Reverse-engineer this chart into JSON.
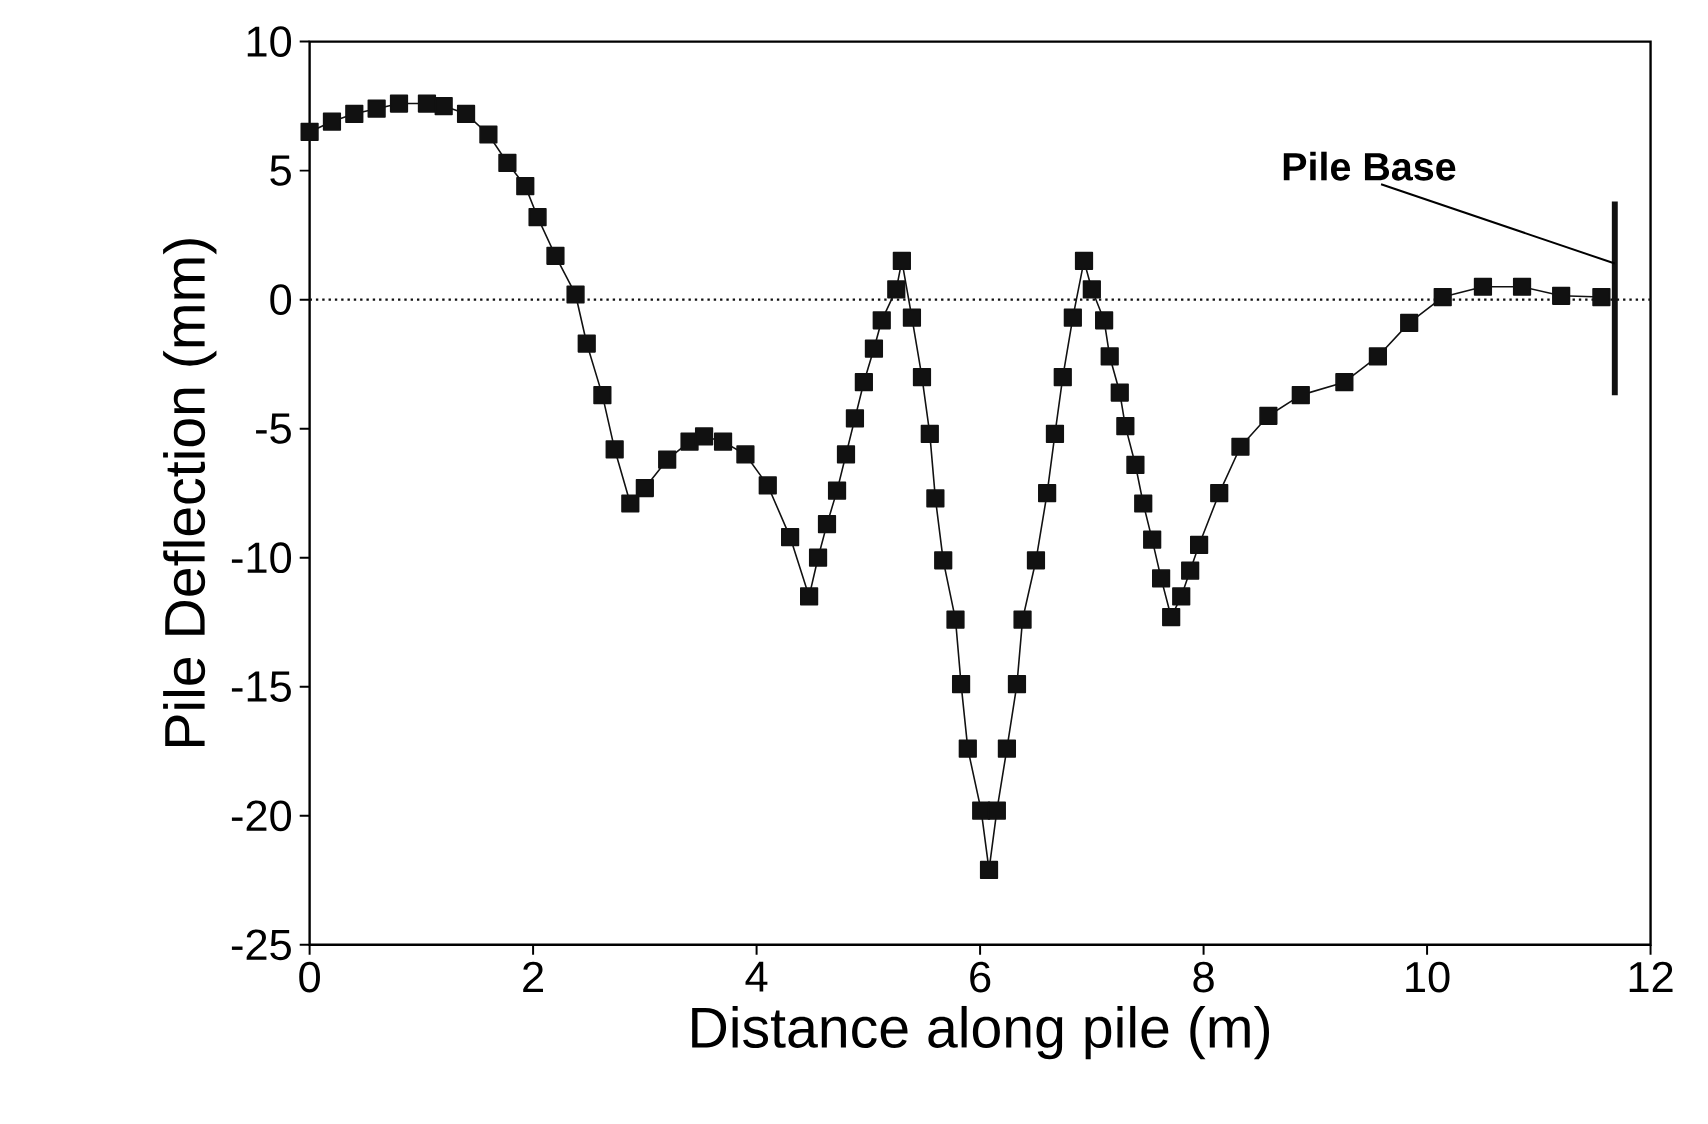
{
  "chart_data": {
    "type": "line",
    "xlabel": "Distance along pile (m)",
    "ylabel": "Pile Deflection (mm)",
    "xlim": [
      0,
      12
    ],
    "ylim": [
      -25,
      10
    ],
    "xticks": [
      0,
      2,
      4,
      6,
      8,
      10,
      12
    ],
    "yticks": [
      -25,
      -20,
      -15,
      -10,
      -5,
      0,
      5,
      10
    ],
    "grid": false,
    "series": [
      {
        "color": "#111111",
        "marker": "square",
        "line_style": "solid",
        "x": [
          0,
          0.2,
          0.4,
          0.6,
          0.8,
          1.05,
          1.2,
          1.4,
          1.6,
          1.77,
          1.93,
          2.04,
          2.2,
          2.38,
          2.48,
          2.62,
          2.73,
          2.87,
          3.0,
          3.2,
          3.4,
          3.53,
          3.7,
          3.9,
          4.1,
          4.3,
          4.47,
          4.55,
          4.63,
          4.72,
          4.8,
          4.88,
          4.96,
          5.05,
          5.12,
          5.25,
          5.3,
          5.39,
          5.48,
          5.55,
          5.6,
          5.67,
          5.78,
          5.83,
          5.89,
          6.01,
          6.08,
          6.15,
          6.24,
          6.33,
          6.38,
          6.5,
          6.6,
          6.67,
          6.74,
          6.83,
          6.93,
          7.0,
          7.11,
          7.16,
          7.25,
          7.3,
          7.39,
          7.46,
          7.54,
          7.62,
          7.71,
          7.8,
          7.88,
          7.96,
          8.14,
          8.33,
          8.58,
          8.87,
          9.26,
          9.56,
          9.84,
          10.14,
          10.5,
          10.85,
          11.2,
          11.56
        ],
        "values": [
          6.5,
          6.9,
          7.2,
          7.4,
          7.6,
          7.6,
          7.5,
          7.2,
          6.4,
          5.3,
          4.4,
          3.2,
          1.7,
          0.2,
          -1.7,
          -3.7,
          -5.8,
          -7.9,
          -7.3,
          -6.2,
          -5.5,
          -5.3,
          -5.5,
          -6.0,
          -7.2,
          -9.2,
          -11.5,
          -10.0,
          -8.7,
          -7.4,
          -6.0,
          -4.6,
          -3.2,
          -1.9,
          -0.8,
          0.4,
          1.5,
          -0.7,
          -3.0,
          -5.2,
          -7.7,
          -10.1,
          -12.4,
          -14.9,
          -17.4,
          -19.8,
          -22.1,
          -19.8,
          -17.4,
          -14.9,
          -12.4,
          -10.1,
          -7.5,
          -5.2,
          -3.0,
          -0.7,
          1.5,
          0.4,
          -0.8,
          -2.2,
          -3.6,
          -4.9,
          -6.4,
          -7.9,
          -9.3,
          -10.8,
          -12.3,
          -11.5,
          -10.5,
          -9.5,
          -7.5,
          -5.7,
          -4.5,
          -3.7,
          -3.2,
          -2.2,
          -0.9,
          0.1,
          0.5,
          0.5,
          0.15,
          0.1
        ]
      },
      {
        "color": "#111111",
        "marker": "none",
        "line_style": "solid",
        "x": [
          11.68,
          11.68
        ],
        "values": [
          3.8,
          -3.7
        ]
      }
    ],
    "ref_lines": [
      {
        "axis": "y",
        "value": 0,
        "line_style": "dotted",
        "color": "#111111"
      }
    ],
    "annotations": [
      {
        "text": "Pile Base",
        "x": 11.68,
        "y": 1.4
      }
    ]
  }
}
